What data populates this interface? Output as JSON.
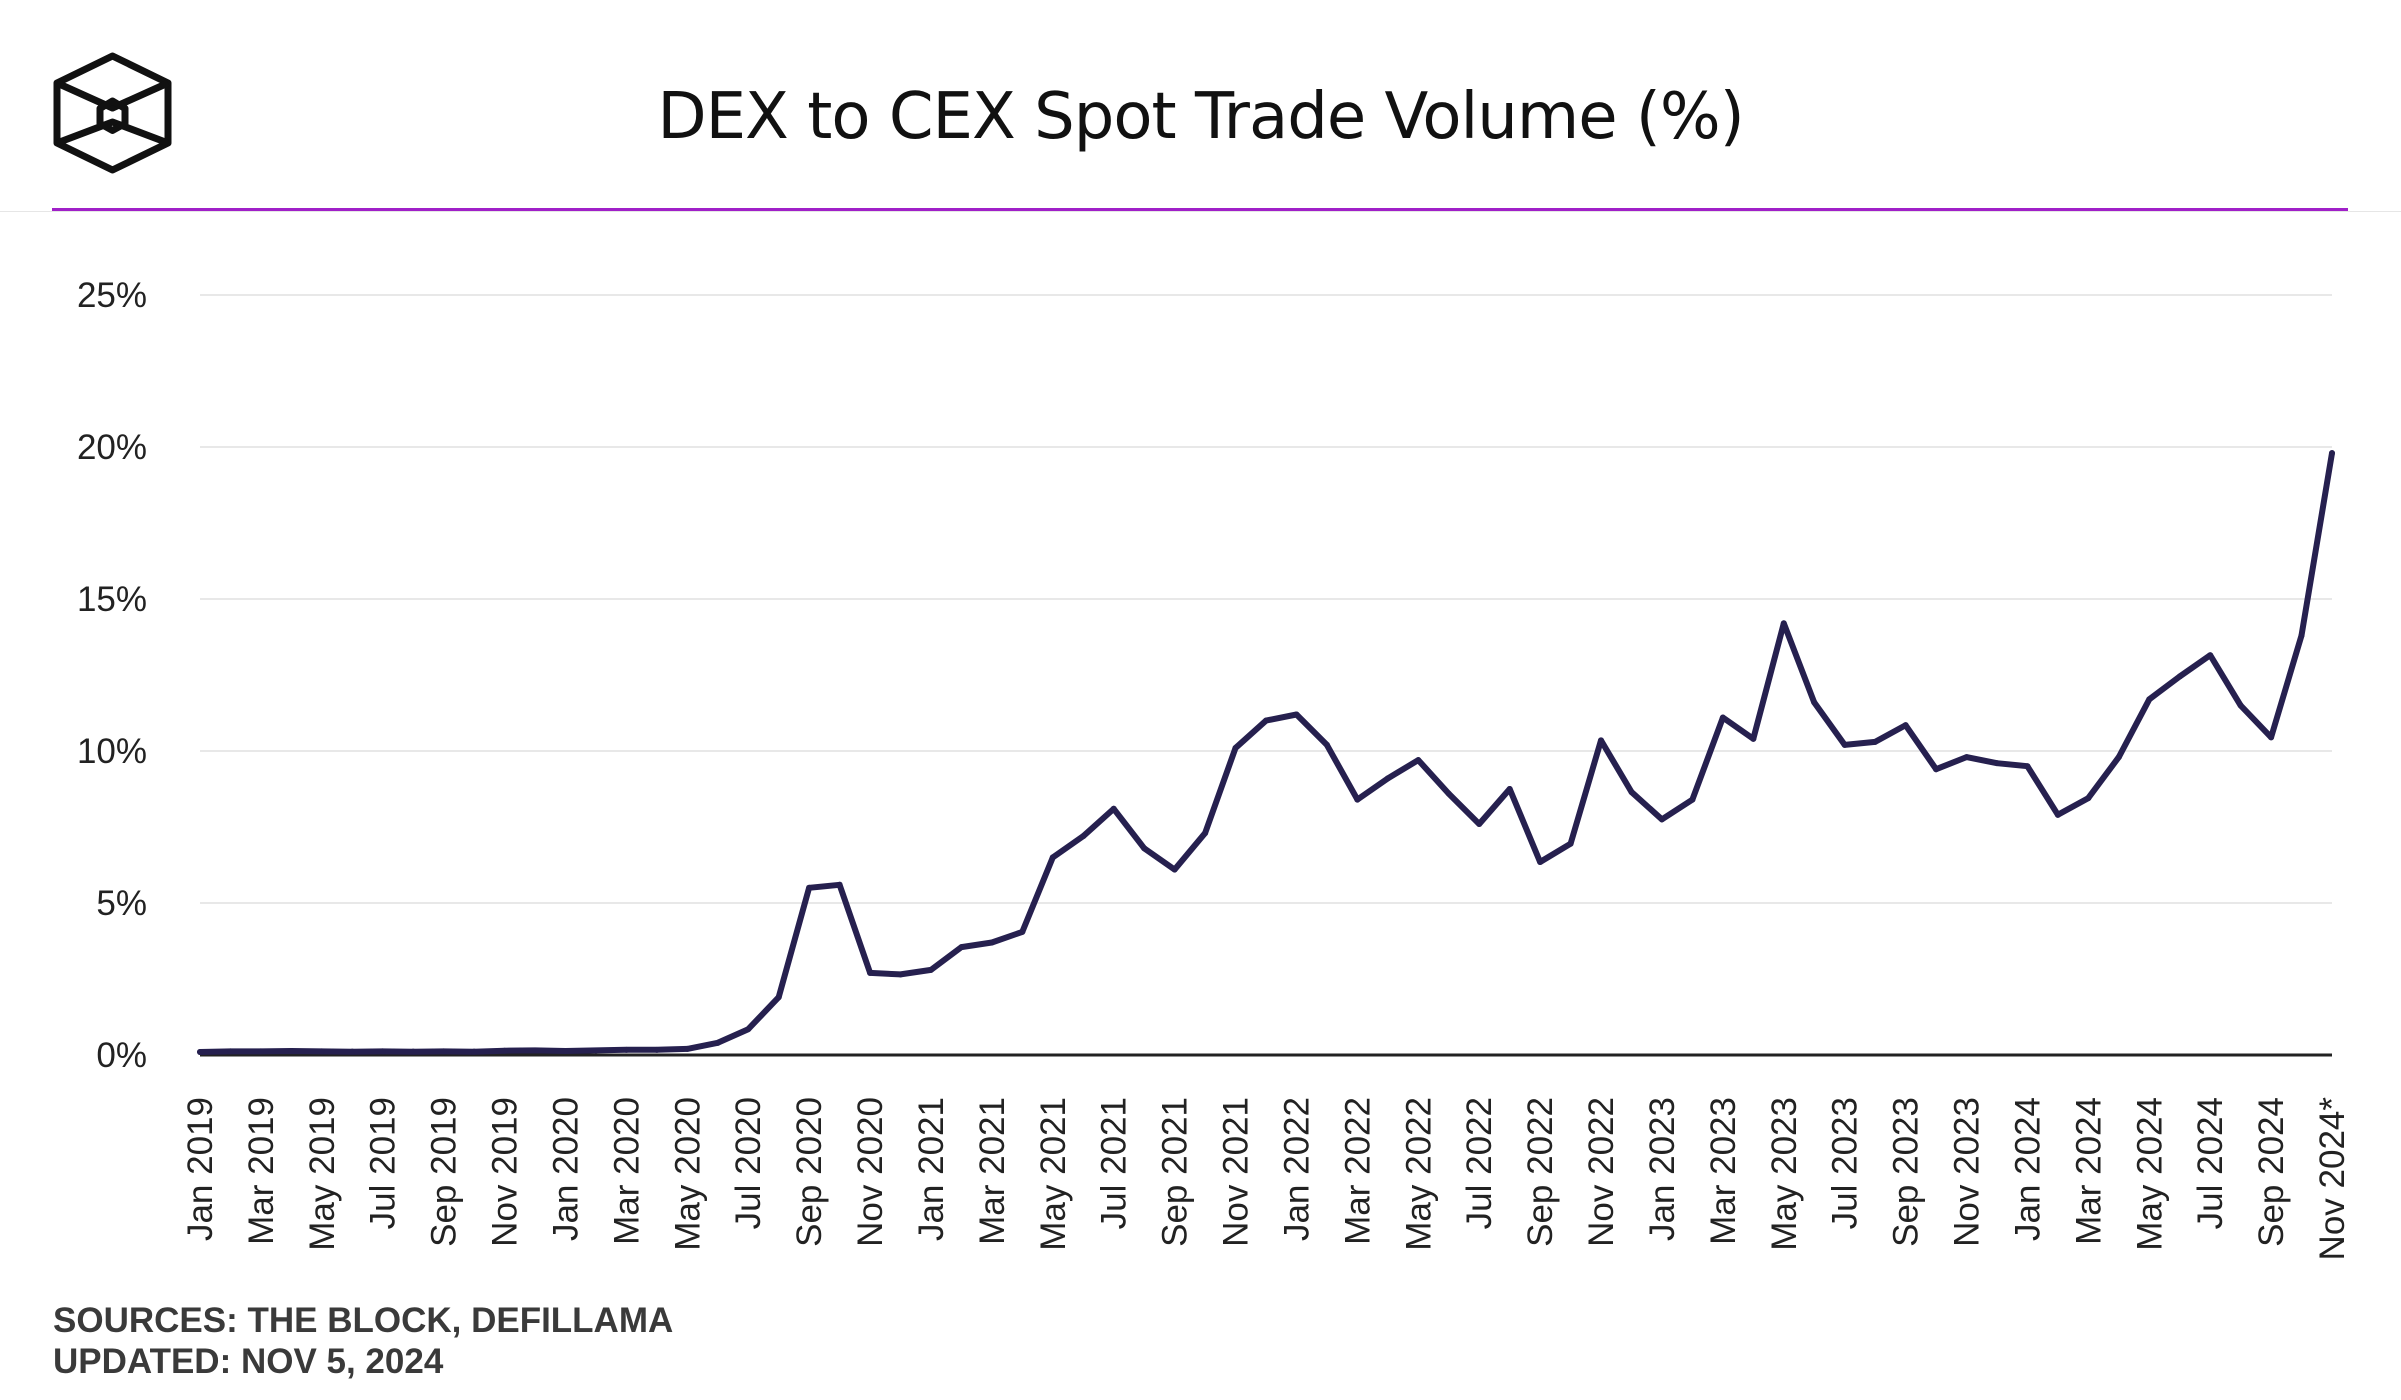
{
  "header": {
    "title": "DEX to CEX Spot Trade Volume (%)",
    "logo_icon": "the-block-cube-logo-icon"
  },
  "colors": {
    "accent": "#a020c8",
    "line": "#26204f",
    "grid": "#e8e8e8",
    "axis": "#222222",
    "text": "#222222"
  },
  "footer": {
    "sources": "SOURCES: THE BLOCK, DEFILLAMA",
    "updated": "UPDATED: NOV 5, 2024"
  },
  "chart_data": {
    "type": "line",
    "title": "DEX to CEX Spot Trade Volume (%)",
    "xlabel": "",
    "ylabel": "",
    "ylim": [
      0,
      25
    ],
    "y_ticks": [
      0,
      5,
      10,
      15,
      20,
      25
    ],
    "y_tick_labels": [
      "0%",
      "5%",
      "10%",
      "15%",
      "20%",
      "25%"
    ],
    "grid": true,
    "legend": "none",
    "x": [
      "Jan 2019",
      "Feb 2019",
      "Mar 2019",
      "Apr 2019",
      "May 2019",
      "Jun 2019",
      "Jul 2019",
      "Aug 2019",
      "Sep 2019",
      "Oct 2019",
      "Nov 2019",
      "Dec 2019",
      "Jan 2020",
      "Feb 2020",
      "Mar 2020",
      "Apr 2020",
      "May 2020",
      "Jun 2020",
      "Jul 2020",
      "Aug 2020",
      "Sep 2020",
      "Oct 2020",
      "Nov 2020",
      "Dec 2020",
      "Jan 2021",
      "Feb 2021",
      "Mar 2021",
      "Apr 2021",
      "May 2021",
      "Jun 2021",
      "Jul 2021",
      "Aug 2021",
      "Sep 2021",
      "Oct 2021",
      "Nov 2021",
      "Dec 2021",
      "Jan 2022",
      "Feb 2022",
      "Mar 2022",
      "Apr 2022",
      "May 2022",
      "Jun 2022",
      "Jul 2022",
      "Aug 2022",
      "Sep 2022",
      "Oct 2022",
      "Nov 2022",
      "Dec 2022",
      "Jan 2023",
      "Feb 2023",
      "Mar 2023",
      "Apr 2023",
      "May 2023",
      "Jun 2023",
      "Jul 2023",
      "Aug 2023",
      "Sep 2023",
      "Oct 2023",
      "Nov 2023",
      "Dec 2023",
      "Jan 2024",
      "Feb 2024",
      "Mar 2024",
      "Apr 2024",
      "May 2024",
      "Jun 2024",
      "Jul 2024",
      "Aug 2024",
      "Sep 2024",
      "Oct 2024",
      "Nov 2024*"
    ],
    "x_tick_labels": [
      "Jan 2019",
      "Mar 2019",
      "May 2019",
      "Jul 2019",
      "Sep 2019",
      "Nov 2019",
      "Jan 2020",
      "Mar 2020",
      "May 2020",
      "Jul 2020",
      "Sep 2020",
      "Nov 2020",
      "Jan 2021",
      "Mar 2021",
      "May 2021",
      "Jul 2021",
      "Sep 2021",
      "Nov 2021",
      "Jan 2022",
      "Mar 2022",
      "May 2022",
      "Jul 2022",
      "Sep 2022",
      "Nov 2022",
      "Jan 2023",
      "Mar 2023",
      "May 2023",
      "Jul 2023",
      "Sep 2023",
      "Nov 2023",
      "Jan 2024",
      "Mar 2024",
      "May 2024",
      "Jul 2024",
      "Sep 2024",
      "Nov 2024*"
    ],
    "series": [
      {
        "name": "DEX to CEX Spot Trade Volume (%)",
        "values": [
          0.1,
          0.12,
          0.12,
          0.13,
          0.12,
          0.11,
          0.12,
          0.11,
          0.12,
          0.11,
          0.14,
          0.15,
          0.13,
          0.15,
          0.17,
          0.17,
          0.2,
          0.4,
          0.85,
          1.9,
          5.5,
          5.6,
          2.7,
          2.65,
          2.8,
          3.55,
          3.7,
          4.05,
          6.5,
          7.2,
          8.1,
          6.8,
          6.1,
          7.3,
          10.1,
          11.0,
          11.2,
          10.2,
          8.4,
          9.1,
          9.7,
          8.6,
          7.6,
          8.75,
          6.35,
          6.95,
          10.35,
          8.65,
          7.75,
          8.4,
          11.1,
          10.4,
          14.2,
          11.6,
          10.2,
          10.3,
          10.85,
          9.4,
          9.8,
          9.6,
          9.5,
          7.9,
          8.45,
          9.8,
          11.7,
          12.45,
          13.15,
          11.5,
          10.45,
          13.8,
          19.8
        ]
      }
    ]
  }
}
